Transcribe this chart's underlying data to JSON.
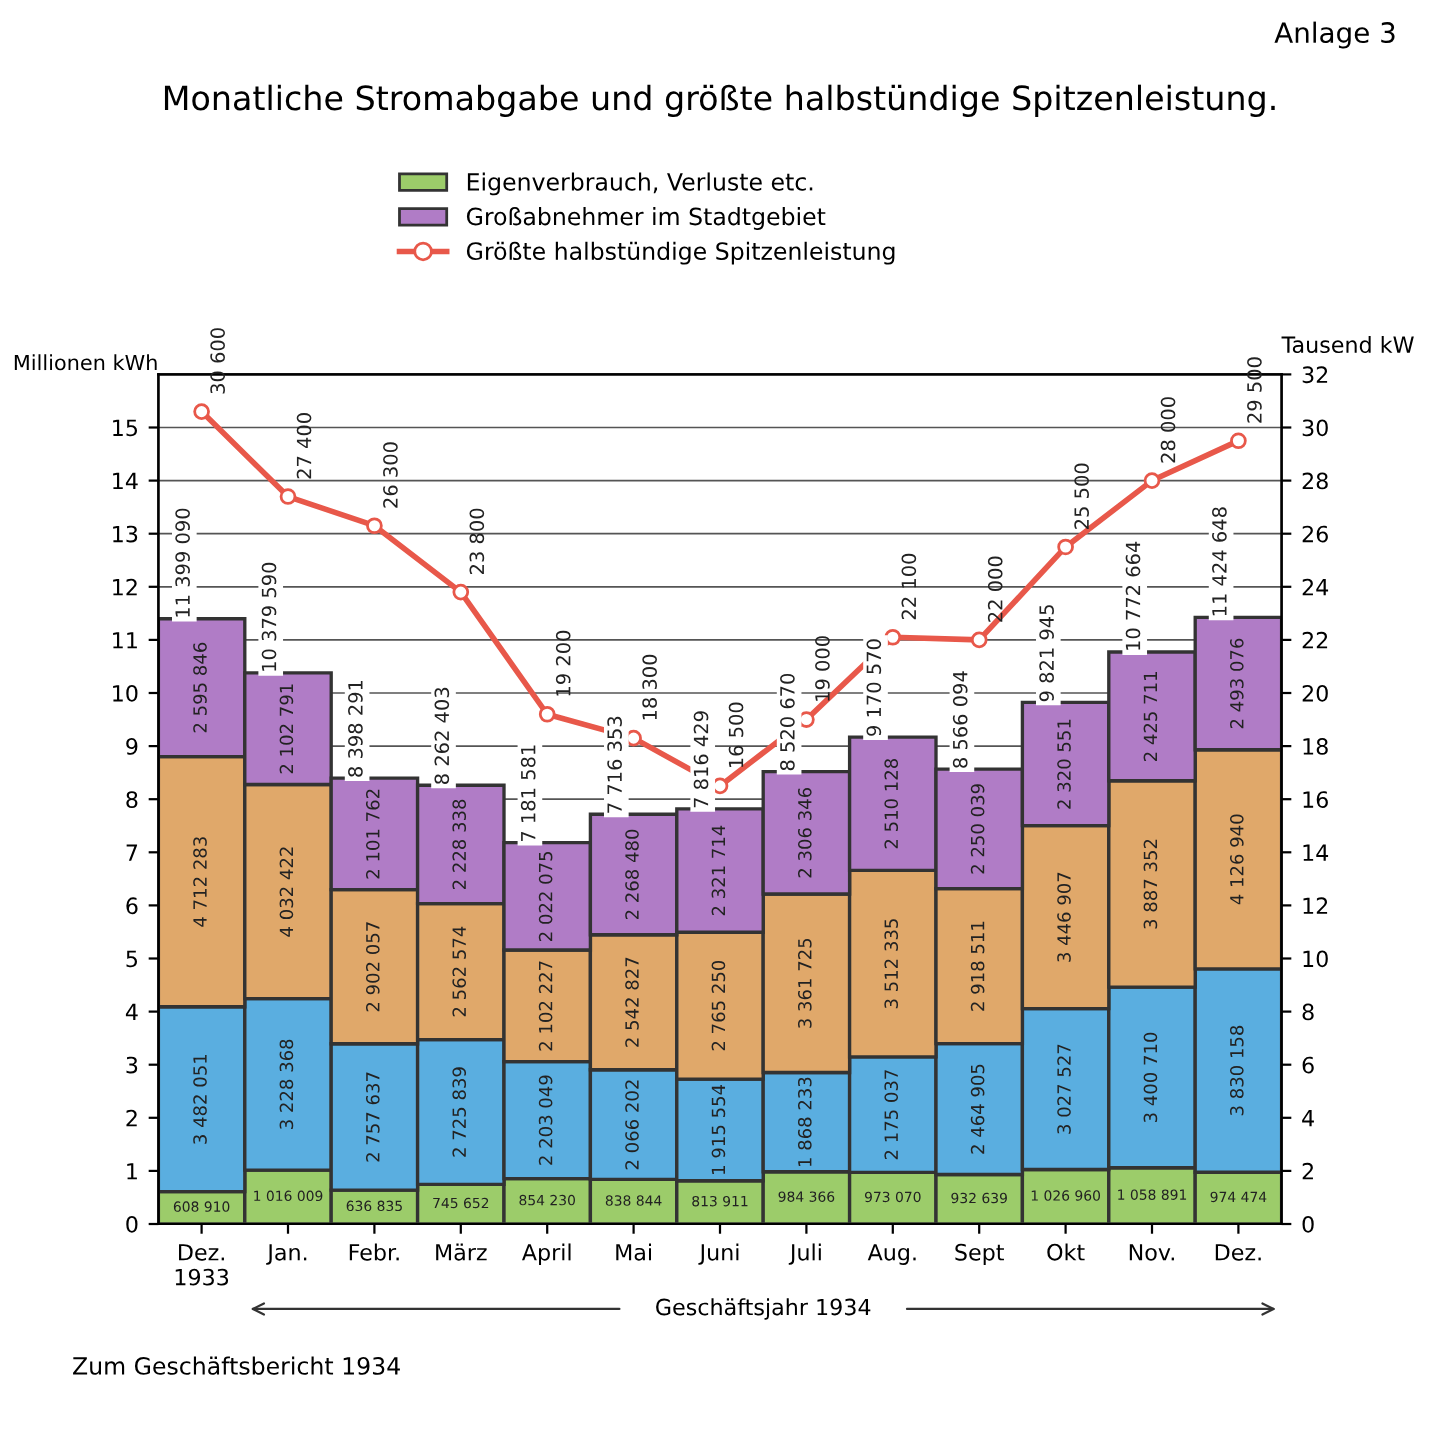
{
  "chart_data": {
    "type": "bar",
    "title": "Monatliche Stromabgabe und größte halbstündige Spitzenleistung.",
    "ylabel": "Millionen kWh",
    "y2label": "Tausend kW",
    "categories": [
      "Dez.\n1933",
      "Jan.",
      "Febr.",
      "März",
      "April",
      "Mai",
      "Juni",
      "Juli",
      "Aug.",
      "Sept",
      "Okt",
      "Nov.",
      "Dez."
    ],
    "stacked": true,
    "series": [
      {
        "name": "Eigenverbrauch, Verluste etc.",
        "color": "#9ccc6a",
        "values": [
          0.60891,
          1.016009,
          0.636835,
          0.745652,
          0.85423,
          0.838844,
          0.813911,
          0.984366,
          0.97307,
          0.932639,
          1.02696,
          1.058891,
          0.974474
        ]
      },
      {
        "color": "#5aaee0",
        "values": [
          3.482051,
          3.228368,
          2.757637,
          2.725839,
          2.203049,
          2.066202,
          1.915554,
          1.868233,
          2.175037,
          2.464905,
          3.027527,
          3.40071,
          3.830158
        ]
      },
      {
        "color": "#e0a86a",
        "values": [
          4.712283,
          4.032422,
          2.902057,
          2.562574,
          2.102227,
          2.542827,
          2.76525,
          3.361725,
          3.512335,
          2.918511,
          3.446907,
          3.887352,
          4.12694
        ]
      },
      {
        "name": "Großabnehmer im Stadtgebiet",
        "color": "#b07cc6",
        "values": [
          2.595846,
          2.102791,
          2.101762,
          2.228338,
          2.022075,
          2.26848,
          2.321714,
          2.306346,
          2.510128,
          2.250039,
          2.320551,
          2.425711,
          2.493076
        ]
      },
      {
        "name": "Größte halbstündige Spitzenleistung",
        "type": "line",
        "axis": "y2",
        "color": "#e8584a",
        "values": [
          30.6,
          27.4,
          26.3,
          23.8,
          19.2,
          18.3,
          16.5,
          19.0,
          22.1,
          22.0,
          25.5,
          28.0,
          29.5
        ]
      }
    ],
    "totals": [
      "11 399 090",
      "10 379 590",
      "8 398 291",
      "8 262 403",
      "7 181 581",
      "7 716 353",
      "7 816 429",
      "8 520 670",
      "9 170 570",
      "8 566 094",
      "9 821 945",
      "10 772 664",
      "11 424 648"
    ],
    "ylim": [
      0,
      16
    ],
    "yticks": [
      0,
      1,
      2,
      3,
      4,
      5,
      6,
      7,
      8,
      9,
      10,
      11,
      12,
      13,
      14,
      15
    ],
    "y2lim": [
      0,
      32
    ],
    "y2ticks": [
      0,
      2,
      4,
      6,
      8,
      10,
      12,
      14,
      16,
      18,
      20,
      22,
      24,
      26,
      28,
      30,
      32
    ],
    "annotations": [
      "Geschäftsjahr 1934",
      "Anlage 3",
      "Zum Geschäftsbericht 1934",
      "608 910",
      "3 482 051",
      "4 712 283",
      "2 595 846",
      "1 016 009",
      "3 228 368",
      "4 032 422",
      "2 102 791",
      "636 835",
      "2 757 637",
      "2 902 057",
      "2 101 762",
      "745 652",
      "2 725 839",
      "2 562 574",
      "2 228 338",
      "854 230",
      "2 203 049",
      "2 102 227",
      "2 022 075",
      "838 844",
      "2 066 202",
      "2 542 827",
      "2 268 480",
      "813 911",
      "1 915 554",
      "2 765 250",
      "2 321 714",
      "984 366",
      "1 868 233",
      "3 361 725",
      "2 306 346",
      "973 070",
      "2 175 037",
      "3 512 335",
      "2 510 128",
      "932 639",
      "2 464 905",
      "2 918 511",
      "2 250 039",
      "1 026 960",
      "3 027 527",
      "3 446 907",
      "2 320 551",
      "1 058 891",
      "3 400 710",
      "3 887 352",
      "2 425 711",
      "974 474",
      "3 830 158",
      "4 126 940",
      "2 493 076",
      "30 600",
      "27 400",
      "26 300",
      "23 800",
      "19 200",
      "18 300",
      "16 500",
      "19 000",
      "22 100",
      "22 000",
      "25 500",
      "28 000",
      "29 500"
    ],
    "grid": "y",
    "legend": "top",
    "marker": "circle"
  }
}
